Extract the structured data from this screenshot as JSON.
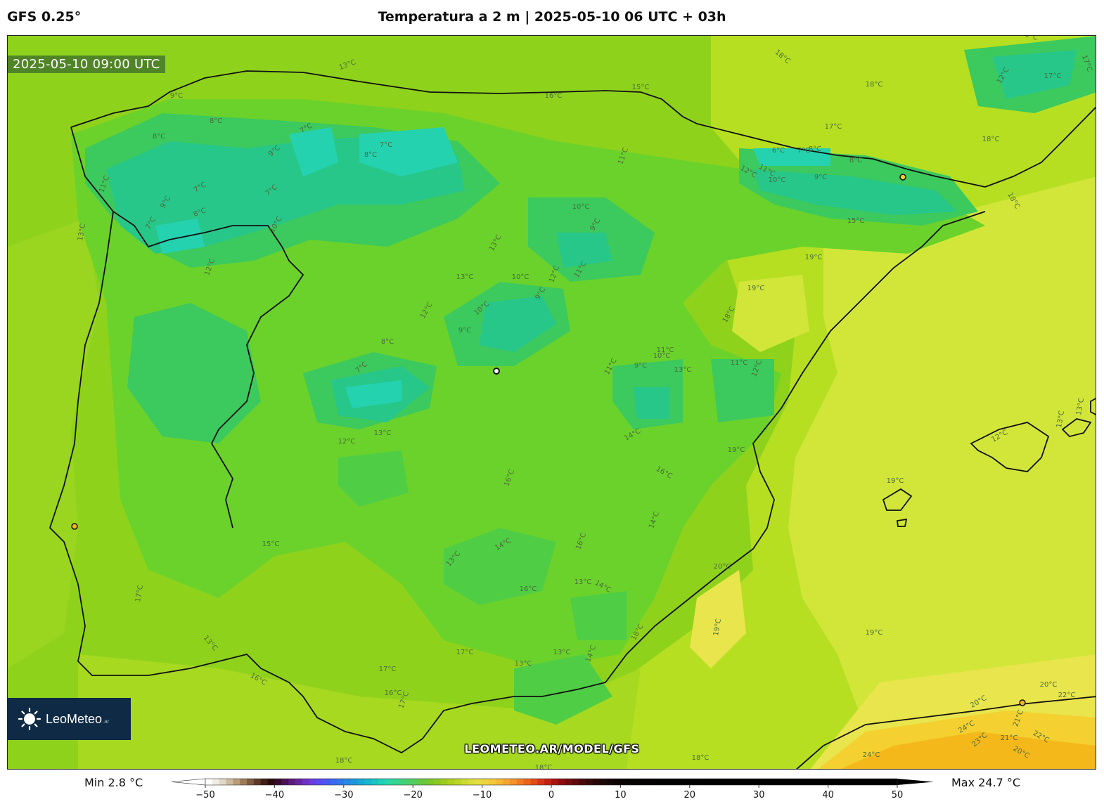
{
  "header": {
    "model": "GFS 0.25°",
    "title": "Temperatura a 2 m | 2025-05-10 06 UTC + 03h"
  },
  "map": {
    "valid_time": "2025-05-10 09:00 UTC",
    "watermark": "LEOMETEO.AR/MODEL/GFS",
    "logo": {
      "text": "LeoMeteo",
      "suffix": ".ar"
    },
    "contour_labels": [
      "13°C",
      "18°C",
      "18°C",
      "11°C",
      "17°C",
      "17°C",
      "12°C",
      "9°C",
      "8°C",
      "8°C",
      "7°C",
      "7°C",
      "8°C",
      "9°C",
      "7°C",
      "16°C",
      "15°C",
      "17°C",
      "18°C",
      "11°C",
      "6°C",
      "7°C",
      "8°C",
      "9°C",
      "8°C",
      "10°C",
      "12°C",
      "11°C",
      "7°C",
      "8°C",
      "9°C",
      "7°C",
      "10°C",
      "13°C",
      "12°C",
      "13°C",
      "10°C",
      "9°C",
      "11°C",
      "15°C",
      "19°C",
      "19°C",
      "18°C",
      "18°C",
      "13°C",
      "11°C",
      "12°C",
      "10°C",
      "9°C",
      "12°C",
      "9°C",
      "10°C",
      "8°C",
      "7°C",
      "11°C",
      "10°C",
      "9°C",
      "11°C",
      "13°C",
      "11°C",
      "12°C",
      "13°C",
      "12°C",
      "14°C",
      "16°C",
      "16°C",
      "19°C",
      "19°C",
      "20°C",
      "19°C",
      "15°C",
      "17°C",
      "13°C",
      "14°C",
      "16°C",
      "13°C",
      "14°C",
      "16°C",
      "14°C",
      "20°C",
      "18°C",
      "19°C",
      "17°C",
      "17°C",
      "13°C",
      "13°C",
      "14°C",
      "16°C",
      "17°C",
      "16°C",
      "20°C",
      "21°C",
      "22°C",
      "24°C",
      "23°C",
      "21°C",
      "22°C",
      "24°C",
      "20°C",
      "18°C",
      "18°C",
      "18°C",
      "13°C",
      "12°C",
      "13°C",
      "12°C",
      "13°C"
    ],
    "colors": {
      "outside": "#8fd21c",
      "warm_18": "#b6df22",
      "warm_19": "#d2e63a",
      "warm_20": "#e9e54c",
      "warm_22": "#f4d030",
      "warm_24": "#f5b81a",
      "cool_13": "#6bd22b",
      "cool_11": "#3cc95e",
      "cool_9": "#27c78a",
      "cool_7": "#25d2b0"
    }
  },
  "stats": {
    "min": "Min 2.8 °C",
    "max": "Max 24.7 °C"
  },
  "colorbar": {
    "ticks": [
      "−50",
      "−40",
      "−30",
      "−20",
      "−10",
      "0",
      "10",
      "20",
      "30",
      "40",
      "50"
    ],
    "range": [
      -50,
      50
    ],
    "colors": [
      "#ffffff",
      "#f1ece4",
      "#e2d8c7",
      "#cdbb9e",
      "#b89c78",
      "#9e7b57",
      "#7f5a3c",
      "#5d3a26",
      "#411d15",
      "#2a0a0c",
      "#3a0a2e",
      "#4d0f55",
      "#5c1a7b",
      "#6625a0",
      "#6d30c3",
      "#6a3ddf",
      "#5a4af0",
      "#4858f2",
      "#3a68ef",
      "#2f78ea",
      "#2588e4",
      "#1d98dc",
      "#17a8d4",
      "#14b7cb",
      "#16c5c1",
      "#1fd1b6",
      "#2ad6a5",
      "#33d592",
      "#3fd27e",
      "#4ccf68",
      "#5acb52",
      "#6ac83c",
      "#7bc62a",
      "#8cc91f",
      "#9ccd1c",
      "#acd11f",
      "#bcd626",
      "#cbdb30",
      "#dadd38",
      "#e7dc3e",
      "#efd43d",
      "#f3c83a",
      "#f5b834",
      "#f6a62e",
      "#f59228",
      "#f27b22",
      "#ec641c",
      "#e34c17",
      "#d53514",
      "#c22012",
      "#aa1210",
      "#8e0c0e",
      "#740a0c",
      "#5c0a0b",
      "#470a0a",
      "#360909",
      "#270808",
      "#1b0707",
      "#120606",
      "#0b0505",
      "#080404",
      "#060303",
      "#050303",
      "#040202",
      "#040202",
      "#030202",
      "#030101",
      "#020101",
      "#020101",
      "#010101",
      "#010101",
      "#010101",
      "#000000",
      "#000000",
      "#000000",
      "#000000",
      "#000000",
      "#000000",
      "#000000",
      "#000000",
      "#000000",
      "#000000",
      "#000000",
      "#000000",
      "#000000",
      "#000000",
      "#000000",
      "#000000",
      "#000000",
      "#000000",
      "#000000",
      "#000000",
      "#000000",
      "#000000",
      "#000000",
      "#000000",
      "#000000",
      "#000000",
      "#000000",
      "#000000"
    ]
  }
}
